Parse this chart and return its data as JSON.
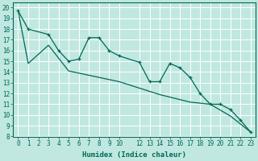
{
  "xlabel": "Humidex (Indice chaleur)",
  "bg_color": "#c0e8e0",
  "grid_color": "#ffffff",
  "line_color": "#006858",
  "xlim": [
    -0.5,
    23.5
  ],
  "ylim": [
    8,
    20.5
  ],
  "xticks": [
    0,
    1,
    2,
    3,
    4,
    5,
    6,
    7,
    8,
    9,
    10,
    12,
    13,
    14,
    15,
    16,
    17,
    18,
    19,
    20,
    21,
    22,
    23
  ],
  "yticks": [
    8,
    9,
    10,
    11,
    12,
    13,
    14,
    15,
    16,
    17,
    18,
    19,
    20
  ],
  "line1_x": [
    0,
    1,
    3,
    4,
    5,
    6,
    7,
    8,
    9,
    10,
    12,
    13,
    14,
    15,
    16,
    17,
    18,
    19,
    20,
    21,
    22,
    23
  ],
  "line1_y": [
    19.7,
    18.0,
    17.5,
    16.0,
    15.0,
    15.2,
    17.2,
    17.2,
    16.0,
    15.5,
    14.9,
    13.1,
    13.1,
    14.8,
    14.4,
    13.5,
    12.0,
    11.0,
    11.0,
    10.5,
    9.5,
    8.4
  ],
  "line2_x": [
    0,
    1,
    3,
    5,
    10,
    12,
    13,
    14,
    17,
    19,
    21,
    23
  ],
  "line2_y": [
    19.7,
    14.8,
    16.5,
    14.1,
    13.1,
    12.5,
    12.2,
    11.9,
    11.2,
    11.0,
    9.9,
    8.4
  ],
  "tick_fontsize": 5.5,
  "label_fontsize": 6.5
}
